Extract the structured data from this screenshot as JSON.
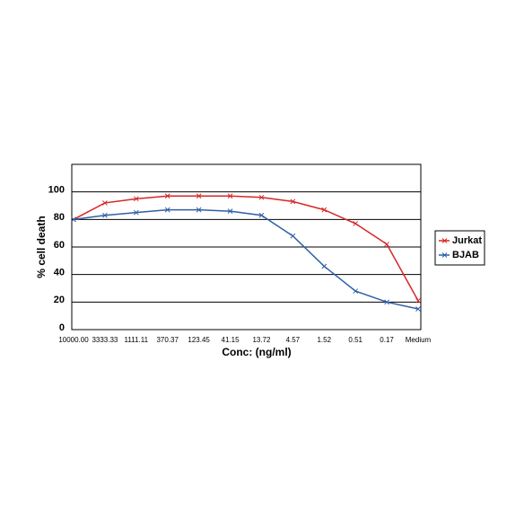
{
  "chart_data": {
    "type": "line",
    "x_label": "Conc: (ng/ml)",
    "y_label": "% cell death",
    "categories": [
      "10000.00",
      "3333.33",
      "1111.11",
      "370.37",
      "123.45",
      "41.15",
      "13.72",
      "4.57",
      "1.52",
      "0.51",
      "0.17",
      "Medium"
    ],
    "series": [
      {
        "name": "Jurkat",
        "color": "#d62728",
        "values": [
          80,
          92,
          95,
          97,
          97,
          97,
          96,
          93,
          87,
          77,
          62,
          21
        ]
      },
      {
        "name": "BJAB",
        "color": "#2f5fa8",
        "values": [
          80,
          83,
          85,
          87,
          87,
          86,
          83,
          68,
          46,
          28,
          20,
          15
        ]
      }
    ],
    "ylim": [
      0,
      120
    ],
    "yticks": [
      0,
      20,
      40,
      60,
      80,
      100
    ],
    "grid": true,
    "legend": "right"
  }
}
